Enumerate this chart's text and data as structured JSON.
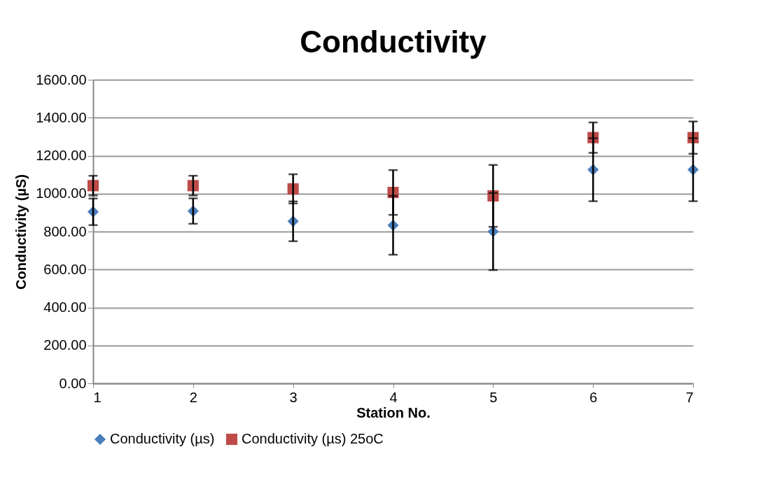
{
  "chart_data": {
    "type": "scatter",
    "title": "Conductivity",
    "xlabel": "Station No.",
    "ylabel": "Conductivity (µS)",
    "x": [
      1,
      2,
      3,
      4,
      5,
      6,
      7
    ],
    "xlim": [
      1,
      7
    ],
    "xticks": [
      1,
      2,
      3,
      4,
      5,
      6,
      7
    ],
    "ylim": [
      0,
      1600
    ],
    "yticks": [
      {
        "value": 0,
        "label": "0.00"
      },
      {
        "value": 200,
        "label": "200.00"
      },
      {
        "value": 400,
        "label": "400.00"
      },
      {
        "value": 600,
        "label": "600.00"
      },
      {
        "value": 800,
        "label": "800.00"
      },
      {
        "value": 1000,
        "label": "1000.00"
      },
      {
        "value": 1200,
        "label": "1200.00"
      },
      {
        "value": 1400,
        "label": "1400.00"
      },
      {
        "value": 1600,
        "label": "1600.00"
      }
    ],
    "grid": "y",
    "legend": "bottom",
    "series": [
      {
        "name": "Conductivity (µs)",
        "color": "#4a7ebb",
        "marker": "diamond",
        "values": [
          904,
          908,
          854,
          833,
          800,
          1126,
          1126
        ],
        "errors": [
          70,
          67,
          105,
          155,
          203,
          166,
          166
        ]
      },
      {
        "name": "Conductivity (µs) 25oC",
        "color": "#be4b48",
        "marker": "square",
        "values": [
          1042,
          1042,
          1025,
          1006,
          988,
          1295,
          1295
        ],
        "errors": [
          52,
          52,
          77,
          118,
          163,
          80,
          85
        ]
      }
    ]
  }
}
